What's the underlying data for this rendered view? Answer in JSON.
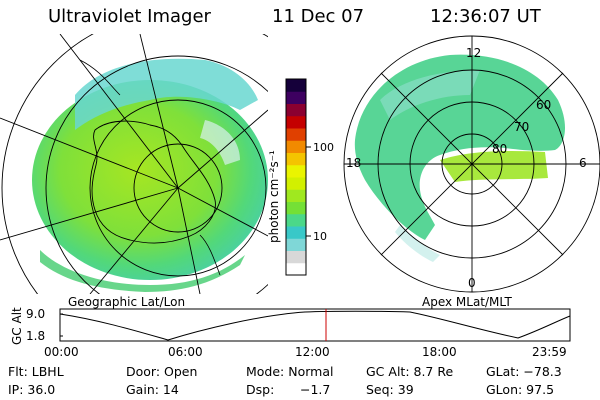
{
  "header": {
    "instrument": "Ultraviolet Imager",
    "date": "11 Dec 07",
    "time": "12:36:07 UT"
  },
  "left_panel": {
    "label": "Geographic Lat/Lon"
  },
  "right_panel": {
    "label": "Apex MLat/MLT",
    "mlt_labels": [
      "12",
      "18",
      "6",
      "0"
    ],
    "mlat_labels": [
      "60",
      "70",
      "80"
    ]
  },
  "colorbar": {
    "title": "photon cm⁻²s⁻¹",
    "ticks": [
      "100",
      "10"
    ],
    "colors": [
      "#ffffff",
      "#d8d8d8",
      "#7fd7d7",
      "#39c8c8",
      "#4bd889",
      "#74e036",
      "#a0e81f",
      "#d2f000",
      "#eaf400",
      "#f4c400",
      "#f18a00",
      "#e04000",
      "#c40000",
      "#8b0030",
      "#3d0060",
      "#15003a"
    ]
  },
  "altitude_plot": {
    "ylabel": "GC Alt",
    "yticks": [
      "9.0",
      "1.8"
    ],
    "xticks": [
      "00:00",
      "06:00",
      "12:00",
      "18:00",
      "23:59"
    ],
    "current_time_marker": "12:36"
  },
  "status": {
    "flt": "Flt: LBHL",
    "door": "Door: Open",
    "mode": "Mode: Normal",
    "gc_alt": "GC Alt: 8.7 Re",
    "glat": "GLat: −78.3",
    "ip": "IP: 36.0",
    "gain": "Gain: 14",
    "dsp_label": "Dsp:",
    "dsp_value": "−1.7",
    "seq": "Seq: 39",
    "glon": "GLon:  97.5"
  }
}
